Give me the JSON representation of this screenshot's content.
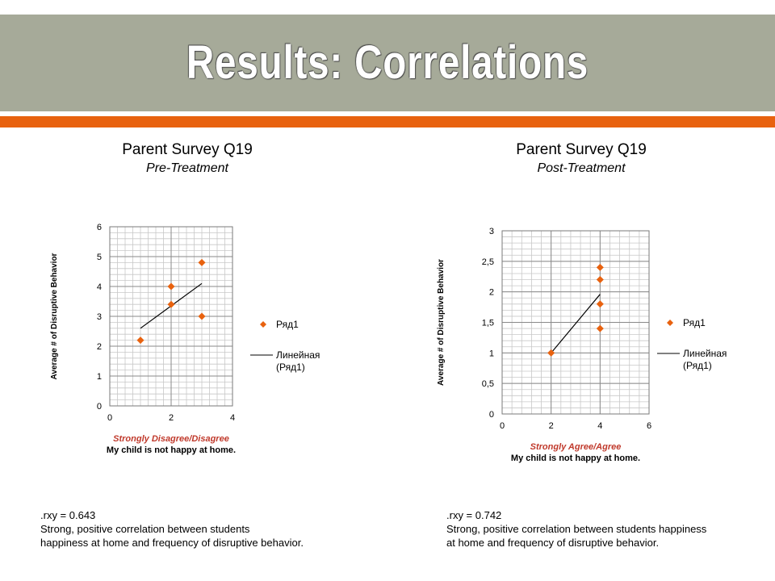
{
  "slide": {
    "title": "Results: Correlations",
    "title_color": "#ffffff",
    "title_bar_color": "#a6aa99",
    "accent_color": "#e8620f"
  },
  "charts_text": [
    {
      "heading": "Parent Survey Q19",
      "subheading": "Pre-Treatment",
      "stat": ".rxy = 0.643",
      "desc1": "Strong, positive correlation between students",
      "desc2": "happiness at home and frequency of disruptive behavior."
    },
    {
      "heading": "Parent Survey Q19",
      "subheading": "Post-Treatment",
      "stat": ".rxy = 0.742",
      "desc1": "Strong, positive correlation between students happiness",
      "desc2": "at home and frequency of disruptive behavior."
    }
  ],
  "chart_data": [
    {
      "type": "scatter",
      "ylabel": "Average # of Disruptive Behavior",
      "xlabel_line1": "Strongly Disagree/Disagree",
      "xlabel_line2": "My child is not happy at home.",
      "xlim": [
        0,
        4
      ],
      "ylim": [
        0,
        6
      ],
      "x_ticks": [
        "0",
        "2",
        "4"
      ],
      "x_tick_values": [
        0,
        2,
        4
      ],
      "y_ticks": [
        "0",
        "1",
        "2",
        "3",
        "4",
        "5",
        "6"
      ],
      "y_tick_values": [
        0,
        1,
        2,
        3,
        4,
        5,
        6
      ],
      "minor_x_step": 0.25,
      "minor_y_step": 0.2,
      "grid": true,
      "legend_position": "right",
      "series": [
        {
          "name": "Ряд1",
          "points": [
            [
              1,
              2.2
            ],
            [
              2,
              4.0
            ],
            [
              2,
              3.4
            ],
            [
              3,
              4.8
            ],
            [
              3,
              3.0
            ]
          ],
          "color": "#e8620f"
        }
      ],
      "trendline": {
        "name": "Линейная (Ряд1)",
        "x": [
          1,
          3
        ],
        "y": [
          2.6,
          4.1
        ],
        "color": "#000000"
      }
    },
    {
      "type": "scatter",
      "ylabel": "Average # of Disruptive Behavior",
      "xlabel_line1": "Strongly Agree/Agree",
      "xlabel_line2": "My child is not happy at home.",
      "xlim": [
        0,
        6
      ],
      "ylim": [
        0,
        3
      ],
      "x_ticks": [
        "0",
        "2",
        "4",
        "6"
      ],
      "x_tick_values": [
        0,
        2,
        4,
        6
      ],
      "y_ticks": [
        "0",
        "0,5",
        "1",
        "1,5",
        "2",
        "2,5",
        "3"
      ],
      "y_tick_values": [
        0,
        0.5,
        1,
        1.5,
        2,
        2.5,
        3
      ],
      "minor_x_step": 0.4,
      "minor_y_step": 0.1,
      "grid": true,
      "legend_position": "right",
      "series": [
        {
          "name": "Ряд1",
          "points": [
            [
              2,
              1.0
            ],
            [
              4,
              2.4
            ],
            [
              4,
              2.2
            ],
            [
              4,
              1.8
            ],
            [
              4,
              1.4
            ]
          ],
          "color": "#e8620f"
        }
      ],
      "trendline": {
        "name": "Линейная (Ряд1)",
        "x": [
          2,
          4
        ],
        "y": [
          1.0,
          1.96
        ],
        "color": "#000000"
      }
    }
  ]
}
